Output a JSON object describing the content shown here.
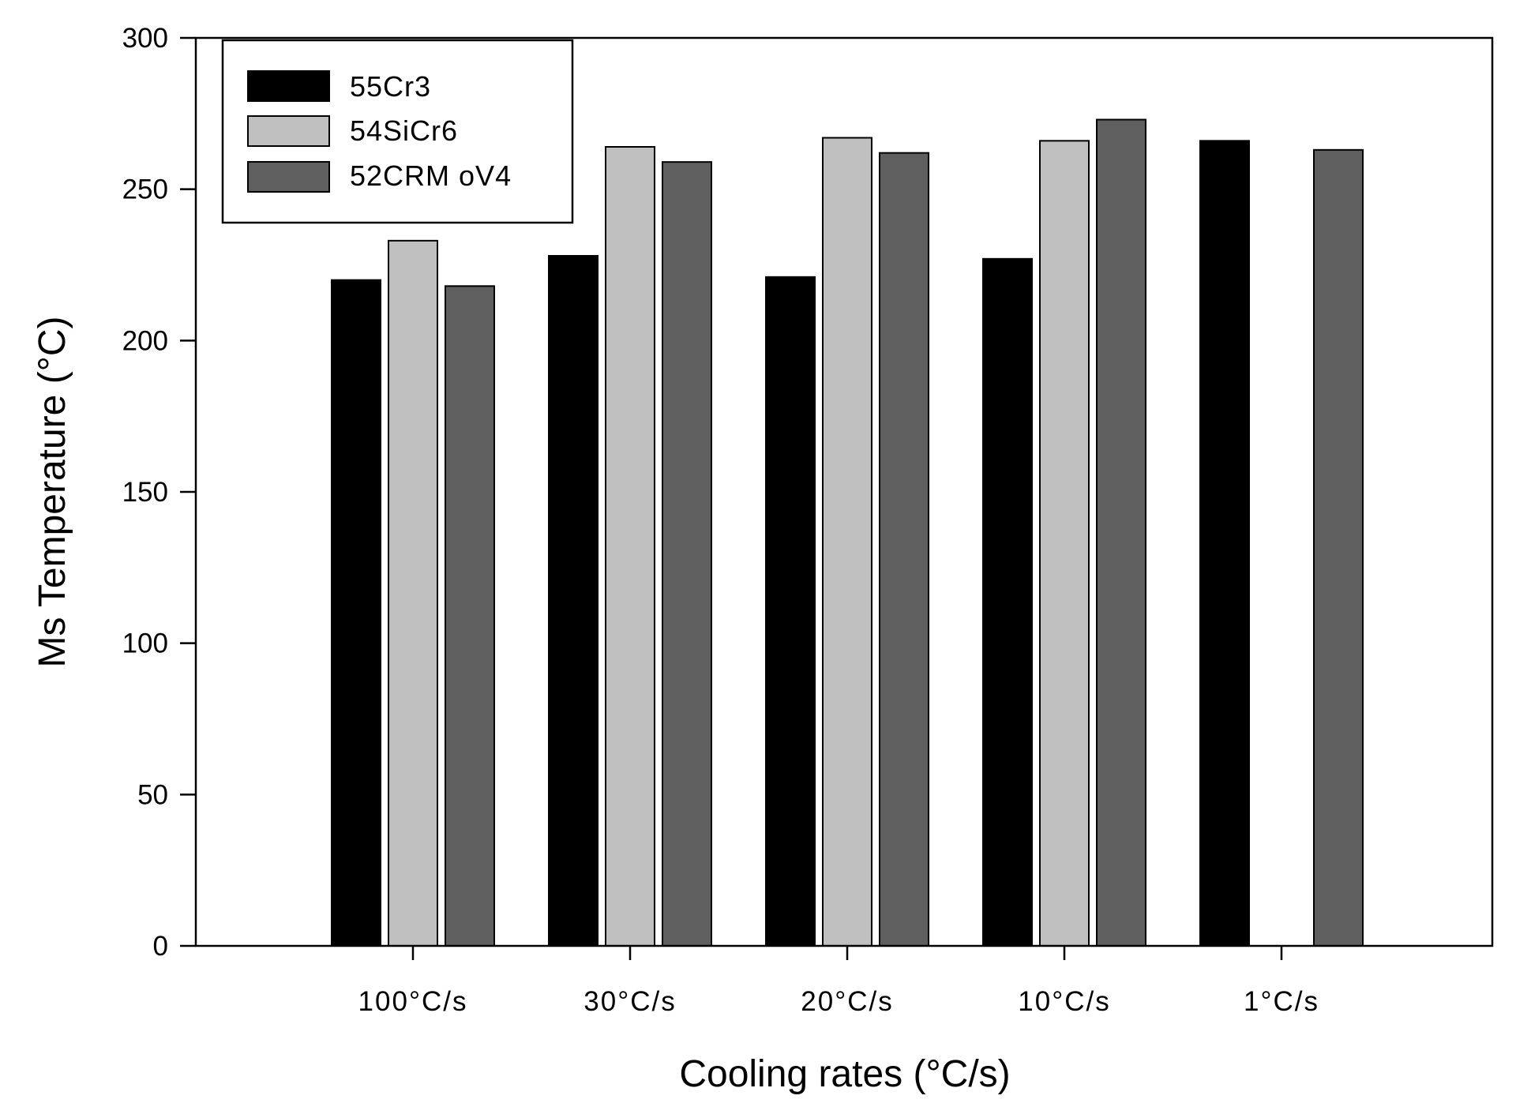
{
  "chart_data": {
    "type": "bar",
    "title": "",
    "xlabel": "Cooling rates (°C/s)",
    "ylabel": "Ms Temperature (°C)",
    "ylim": [
      0,
      300
    ],
    "yticks": [
      "0",
      "50",
      "100",
      "150",
      "200",
      "250",
      "300"
    ],
    "categories": [
      "100°C/s",
      "30°C/s",
      "20°C/s",
      "10°C/s",
      "1°C/s"
    ],
    "series": [
      {
        "name": "55Cr3",
        "color": "#000000",
        "values": [
          220,
          228,
          221,
          227,
          266
        ]
      },
      {
        "name": "54SiCr6",
        "color": "#c0c0c0",
        "values": [
          233,
          264,
          267,
          266,
          null
        ]
      },
      {
        "name": "52CRMoV4",
        "color": "#5f5f5f",
        "values": [
          218,
          259,
          262,
          273,
          263
        ]
      }
    ],
    "legend": {
      "position": "top-left",
      "labels": [
        "55Cr3",
        "54SiCr6",
        "52CRM oV4"
      ]
    },
    "grid": false
  }
}
